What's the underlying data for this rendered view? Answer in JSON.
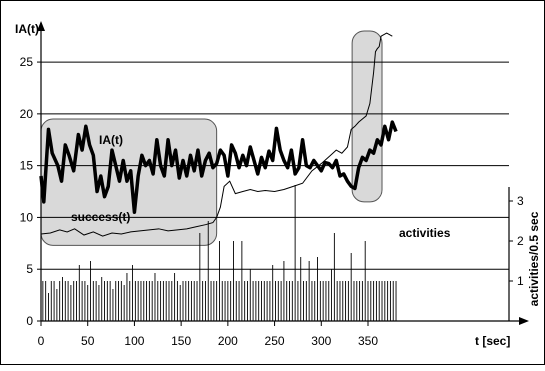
{
  "chart_data": {
    "type": "line",
    "title": "",
    "ylabel": "IA(t)",
    "xlabel": "t [sec]",
    "y2label": "activities/0.5 sec",
    "xlim": [
      0,
      390
    ],
    "ylim": [
      0,
      28
    ],
    "y2lim": [
      0,
      3.7
    ],
    "x_ticks": [
      "0",
      "50",
      "100",
      "150",
      "200",
      "250",
      "300",
      "350"
    ],
    "y_ticks": [
      "0",
      "5",
      "10",
      "15",
      "20",
      "25"
    ],
    "y2_ticks": [
      "1",
      "2",
      "3"
    ],
    "grid": "horizontal",
    "highlights": [
      {
        "x0": 0,
        "x1": 188,
        "y0": 7.3,
        "y1": 19.5
      },
      {
        "x0": 333,
        "x1": 365,
        "y0": 11.5,
        "y1": 28
      }
    ],
    "series": [
      {
        "name": "IA(t)",
        "style": "thick",
        "x": [
          0,
          3,
          8,
          12,
          18,
          22,
          26,
          30,
          35,
          40,
          44,
          48,
          52,
          56,
          60,
          64,
          68,
          72,
          76,
          80,
          84,
          88,
          92,
          96,
          100,
          104,
          108,
          112,
          116,
          120,
          124,
          128,
          132,
          136,
          140,
          144,
          148,
          152,
          156,
          160,
          164,
          168,
          172,
          176,
          180,
          184,
          188,
          192,
          196,
          200,
          204,
          208,
          212,
          216,
          220,
          224,
          228,
          232,
          236,
          240,
          244,
          248,
          252,
          256,
          260,
          264,
          268,
          272,
          276,
          280,
          284,
          288,
          292,
          296,
          300,
          304,
          308,
          312,
          316,
          320,
          324,
          328,
          332,
          336,
          340,
          344,
          348,
          352,
          356,
          360,
          364,
          368,
          372,
          376,
          380
        ],
        "y": [
          14,
          11.5,
          18.5,
          16.2,
          15,
          13.5,
          17,
          16,
          14.5,
          18,
          16.5,
          18.8,
          17,
          16,
          12.5,
          14,
          12,
          13,
          16.5,
          15,
          13.5,
          15.5,
          13.5,
          14.5,
          10.5,
          14,
          16,
          15,
          15.5,
          14.2,
          17.5,
          15,
          14,
          17.5,
          15,
          16.5,
          13.8,
          15.5,
          14,
          16,
          14.5,
          16.5,
          14,
          15.5,
          16.2,
          14.8,
          15.2,
          16.5,
          16,
          14,
          17,
          16.2,
          14.8,
          16,
          15,
          16.8,
          15.5,
          14.2,
          15.8,
          14.8,
          16.4,
          15.5,
          18.6,
          16.5,
          15.5,
          14.8,
          16.5,
          14.2,
          14.8,
          17.5,
          15,
          14.8,
          15.5,
          15,
          14.5,
          15.3,
          15.2,
          14.8,
          15.5,
          14,
          14.2,
          13.5,
          13,
          12.8,
          14.8,
          15.8,
          15.5,
          16.5,
          16.2,
          17.5,
          17,
          18.8,
          17.5,
          19.2,
          18.3
        ]
      },
      {
        "name": "success(t)",
        "style": "thin",
        "x": [
          0,
          10,
          20,
          28,
          36,
          46,
          56,
          66,
          76,
          86,
          96,
          106,
          116,
          126,
          136,
          146,
          156,
          166,
          176,
          184,
          188,
          192,
          196,
          202,
          208,
          216,
          224,
          232,
          240,
          250,
          260,
          270,
          280,
          290,
          300,
          310,
          316,
          322,
          328,
          332,
          336,
          340,
          344,
          348,
          352,
          354,
          356,
          358,
          360,
          362,
          364,
          370,
          376
        ],
        "y": [
          8.4,
          8.5,
          8.8,
          8.6,
          8.9,
          8.3,
          8.6,
          8.2,
          8.5,
          8.4,
          8.6,
          8.7,
          8.8,
          8.9,
          8.7,
          8.8,
          8.9,
          9.1,
          9.3,
          9.5,
          10,
          11,
          13,
          13.5,
          12.3,
          12.5,
          12.7,
          12.5,
          12.6,
          12.5,
          12.7,
          13,
          13.3,
          14.5,
          15.2,
          16,
          16.5,
          16.2,
          16.8,
          18.5,
          18.8,
          19.2,
          19.5,
          19.8,
          21,
          22.5,
          24,
          26,
          26.3,
          26.5,
          27.5,
          27.8,
          27.5
        ]
      },
      {
        "name": "activities",
        "axis": "y2",
        "style": "impulse",
        "x": [
          2,
          5,
          8,
          11,
          14,
          17,
          20,
          23,
          26,
          29,
          32,
          35,
          38,
          41,
          44,
          47,
          50,
          53,
          56,
          59,
          62,
          65,
          68,
          71,
          74,
          77,
          80,
          83,
          86,
          89,
          92,
          95,
          98,
          101,
          104,
          107,
          110,
          113,
          116,
          119,
          122,
          125,
          128,
          131,
          134,
          137,
          140,
          143,
          146,
          149,
          152,
          155,
          158,
          161,
          164,
          167,
          170,
          173,
          176,
          179,
          182,
          185,
          188,
          191,
          194,
          197,
          200,
          203,
          206,
          209,
          212,
          215,
          218,
          221,
          224,
          227,
          230,
          233,
          236,
          239,
          242,
          245,
          248,
          251,
          254,
          257,
          260,
          263,
          266,
          269,
          272,
          275,
          278,
          281,
          284,
          287,
          290,
          293,
          296,
          299,
          302,
          305,
          308,
          311,
          314,
          317,
          320,
          323,
          326,
          329,
          332,
          335,
          338,
          341,
          344,
          347,
          350,
          353,
          356,
          359,
          362,
          365,
          368,
          371,
          374,
          377,
          380
        ],
        "y": [
          1,
          1,
          0.7,
          1,
          1,
          0.8,
          1,
          1.1,
          1,
          1,
          0.9,
          1,
          1,
          1.4,
          1,
          1,
          0.9,
          1.5,
          1,
          1,
          0.9,
          1.1,
          1,
          1,
          1,
          0.8,
          1,
          1,
          1,
          0.9,
          1.2,
          1,
          1.4,
          1,
          1,
          1,
          1,
          1,
          1,
          1,
          1.2,
          1,
          1,
          1,
          1,
          1,
          1,
          1.2,
          1,
          0.9,
          1,
          1,
          1,
          1,
          1,
          1,
          2.2,
          1,
          1,
          2.5,
          1,
          1,
          1,
          2,
          1,
          1,
          1,
          1,
          2,
          1,
          1,
          2,
          1,
          1,
          1.3,
          1,
          1,
          1,
          1,
          1,
          1,
          1,
          1.4,
          1,
          1,
          1,
          1.5,
          1,
          1,
          1,
          3.4,
          1,
          1.6,
          1,
          1,
          1.5,
          1,
          1,
          1.6,
          1,
          1,
          1,
          1,
          1.3,
          2.2,
          1,
          1,
          1,
          1,
          1,
          1.7,
          1,
          1,
          1,
          1,
          2,
          1,
          1,
          1,
          1,
          1,
          1,
          1,
          1,
          1,
          1,
          1
        ]
      }
    ],
    "annotations": [
      {
        "text": "IA(t)",
        "series": "IA(t)"
      },
      {
        "text": "success(t)",
        "series": "success(t)"
      },
      {
        "text": "activities",
        "series": "activities"
      }
    ]
  }
}
